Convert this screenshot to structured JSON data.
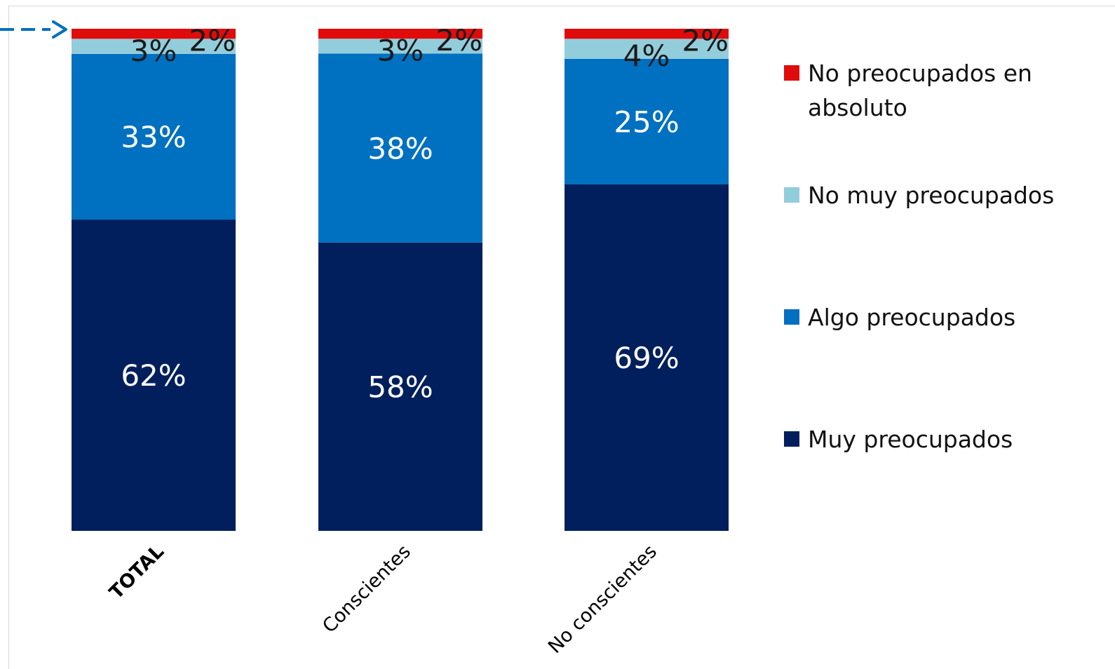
{
  "chart_data": {
    "type": "bar",
    "stacked": true,
    "categories": [
      "TOTAL",
      "Conscientes",
      "No conscientes"
    ],
    "series": [
      {
        "name": "Muy preocupados",
        "values": [
          62,
          58,
          69
        ],
        "labels": [
          "62%",
          "58%",
          "69%"
        ],
        "color": "#001f5c"
      },
      {
        "name": "Algo preocupados",
        "values": [
          33,
          38,
          25
        ],
        "labels": [
          "33%",
          "38%",
          "25%"
        ],
        "color": "#0070c0"
      },
      {
        "name": "No muy preocupados",
        "values": [
          3,
          3,
          4
        ],
        "labels": [
          "3%",
          "3%",
          "4%"
        ],
        "color": "#92cddc"
      },
      {
        "name": "No preocupados en absoluto",
        "values": [
          2,
          2,
          2
        ],
        "labels": [
          "2%",
          "2%",
          "2%"
        ],
        "color": "#e00b0b"
      }
    ],
    "legend": {
      "position": "right",
      "items": [
        "No preocupados en absoluto",
        "No muy preocupados",
        "Algo preocupados",
        "Muy preocupados"
      ]
    },
    "bold_category": "TOTAL",
    "ylim": [
      0,
      100
    ],
    "grid": false,
    "title": "",
    "xlabel": "",
    "ylabel": ""
  },
  "arrow_color": "#0070c0"
}
